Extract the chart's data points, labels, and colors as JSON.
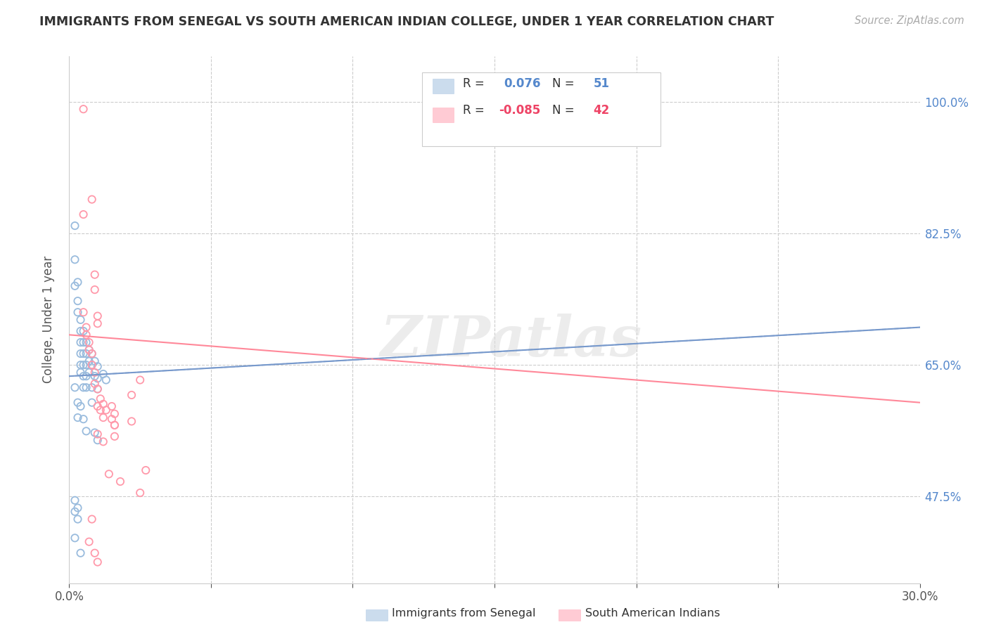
{
  "title": "IMMIGRANTS FROM SENEGAL VS SOUTH AMERICAN INDIAN COLLEGE, UNDER 1 YEAR CORRELATION CHART",
  "source": "Source: ZipAtlas.com",
  "ylabel": "College, Under 1 year",
  "ytick_labels": [
    "47.5%",
    "65.0%",
    "82.5%",
    "100.0%"
  ],
  "ytick_values": [
    0.475,
    0.65,
    0.825,
    1.0
  ],
  "xlim": [
    0.0,
    0.3
  ],
  "ylim": [
    0.36,
    1.06
  ],
  "color_blue": "#99BBDD",
  "color_pink": "#FF99AA",
  "color_blue_line": "#7799CC",
  "color_pink_line": "#FF8899",
  "color_blue_text": "#5588CC",
  "color_pink_text": "#EE4466",
  "watermark": "ZIPatlas",
  "blue_scatter": [
    [
      0.002,
      0.835
    ],
    [
      0.002,
      0.79
    ],
    [
      0.002,
      0.755
    ],
    [
      0.003,
      0.76
    ],
    [
      0.003,
      0.735
    ],
    [
      0.003,
      0.72
    ],
    [
      0.004,
      0.71
    ],
    [
      0.004,
      0.695
    ],
    [
      0.004,
      0.68
    ],
    [
      0.004,
      0.665
    ],
    [
      0.004,
      0.65
    ],
    [
      0.004,
      0.64
    ],
    [
      0.005,
      0.695
    ],
    [
      0.005,
      0.68
    ],
    [
      0.005,
      0.665
    ],
    [
      0.005,
      0.65
    ],
    [
      0.005,
      0.635
    ],
    [
      0.005,
      0.62
    ],
    [
      0.006,
      0.68
    ],
    [
      0.006,
      0.665
    ],
    [
      0.006,
      0.65
    ],
    [
      0.006,
      0.635
    ],
    [
      0.006,
      0.62
    ],
    [
      0.007,
      0.67
    ],
    [
      0.007,
      0.655
    ],
    [
      0.007,
      0.64
    ],
    [
      0.008,
      0.665
    ],
    [
      0.008,
      0.65
    ],
    [
      0.008,
      0.62
    ],
    [
      0.009,
      0.655
    ],
    [
      0.009,
      0.635
    ],
    [
      0.01,
      0.648
    ],
    [
      0.01,
      0.632
    ],
    [
      0.01,
      0.618
    ],
    [
      0.012,
      0.638
    ],
    [
      0.013,
      0.63
    ],
    [
      0.002,
      0.62
    ],
    [
      0.003,
      0.6
    ],
    [
      0.003,
      0.58
    ],
    [
      0.004,
      0.595
    ],
    [
      0.005,
      0.578
    ],
    [
      0.006,
      0.562
    ],
    [
      0.008,
      0.6
    ],
    [
      0.009,
      0.56
    ],
    [
      0.01,
      0.55
    ],
    [
      0.002,
      0.455
    ],
    [
      0.002,
      0.42
    ],
    [
      0.004,
      0.4
    ],
    [
      0.002,
      0.47
    ],
    [
      0.003,
      0.445
    ],
    [
      0.003,
      0.46
    ]
  ],
  "pink_scatter": [
    [
      0.005,
      0.99
    ],
    [
      0.008,
      0.87
    ],
    [
      0.005,
      0.85
    ],
    [
      0.009,
      0.77
    ],
    [
      0.009,
      0.75
    ],
    [
      0.005,
      0.72
    ],
    [
      0.01,
      0.715
    ],
    [
      0.01,
      0.705
    ],
    [
      0.006,
      0.7
    ],
    [
      0.006,
      0.69
    ],
    [
      0.007,
      0.68
    ],
    [
      0.007,
      0.67
    ],
    [
      0.008,
      0.665
    ],
    [
      0.008,
      0.65
    ],
    [
      0.009,
      0.64
    ],
    [
      0.009,
      0.625
    ],
    [
      0.01,
      0.618
    ],
    [
      0.01,
      0.595
    ],
    [
      0.011,
      0.605
    ],
    [
      0.011,
      0.59
    ],
    [
      0.012,
      0.598
    ],
    [
      0.012,
      0.58
    ],
    [
      0.013,
      0.59
    ],
    [
      0.015,
      0.595
    ],
    [
      0.015,
      0.578
    ],
    [
      0.016,
      0.585
    ],
    [
      0.016,
      0.57
    ],
    [
      0.01,
      0.558
    ],
    [
      0.012,
      0.548
    ],
    [
      0.014,
      0.505
    ],
    [
      0.016,
      0.57
    ],
    [
      0.016,
      0.555
    ],
    [
      0.018,
      0.495
    ],
    [
      0.022,
      0.61
    ],
    [
      0.022,
      0.575
    ],
    [
      0.025,
      0.63
    ],
    [
      0.025,
      0.48
    ],
    [
      0.027,
      0.51
    ],
    [
      0.008,
      0.445
    ],
    [
      0.007,
      0.415
    ],
    [
      0.009,
      0.4
    ],
    [
      0.01,
      0.388
    ]
  ],
  "blue_line_x": [
    0.0,
    0.3
  ],
  "blue_line_y": [
    0.635,
    0.7
  ],
  "pink_line_x": [
    0.0,
    0.3
  ],
  "pink_line_y": [
    0.69,
    0.6
  ],
  "legend_r1": "R =  ",
  "legend_rv1": "0.076",
  "legend_n1": "N =  ",
  "legend_nv1": "51",
  "legend_r2": "R = ",
  "legend_rv2": "-0.085",
  "legend_n2": "N =  ",
  "legend_nv2": "42"
}
